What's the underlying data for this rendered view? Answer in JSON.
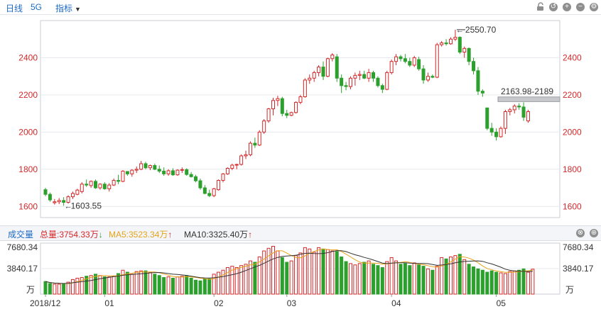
{
  "toolbar": {
    "period_label": "日线",
    "range_label": "5G",
    "indicator_label": "指标",
    "arrow": "▼",
    "zoom_in": "+",
    "zoom_out": "−",
    "settings": "⚙"
  },
  "main_chart": {
    "y_ticks": [
      "2400",
      "2200",
      "2000",
      "1800",
      "1600"
    ],
    "high_label": "2550.70",
    "low_label": "1603.55",
    "gap_label": "2163.98-2189"
  },
  "volume_bar": {
    "title": "成交量",
    "total_label": "总量:3754.33万",
    "ma5_label": "MA5:3523.34万",
    "ma10_label": "MA10:3325.40万",
    "down_arrow": "↓",
    "up_arrow": "↑",
    "close_icon": "⊗",
    "add_icon": "⊕"
  },
  "volume_chart": {
    "y_top": "7680.34",
    "y_mid": "3840.17",
    "unit": "万",
    "x_labels": [
      "2018/12",
      "01",
      "02",
      "03",
      "04",
      "05"
    ]
  },
  "colors": {
    "up": "#d4282a",
    "down": "#2ca02c",
    "ma5": "#e6a419",
    "ma10": "#333333",
    "accent": "#1d69c4"
  },
  "chart_data": {
    "type": "candlestick",
    "y_range": [
      1540,
      2600
    ],
    "ohlc": [
      [
        1690,
        1700,
        1655,
        1665
      ],
      [
        1665,
        1675,
        1625,
        1635
      ],
      [
        1620,
        1640,
        1610,
        1625
      ],
      [
        1625,
        1645,
        1612,
        1632
      ],
      [
        1632,
        1650,
        1603.55,
        1622
      ],
      [
        1622,
        1660,
        1615,
        1652
      ],
      [
        1652,
        1680,
        1640,
        1670
      ],
      [
        1665,
        1695,
        1660,
        1688
      ],
      [
        1680,
        1730,
        1670,
        1720
      ],
      [
        1720,
        1745,
        1705,
        1715
      ],
      [
        1712,
        1740,
        1700,
        1735
      ],
      [
        1735,
        1745,
        1695,
        1700
      ],
      [
        1700,
        1725,
        1690,
        1720
      ],
      [
        1720,
        1730,
        1690,
        1695
      ],
      [
        1695,
        1725,
        1680,
        1715
      ],
      [
        1715,
        1750,
        1710,
        1740
      ],
      [
        1740,
        1770,
        1720,
        1735
      ],
      [
        1735,
        1795,
        1730,
        1790
      ],
      [
        1788,
        1790,
        1765,
        1775
      ],
      [
        1775,
        1800,
        1760,
        1795
      ],
      [
        1795,
        1815,
        1780,
        1800
      ],
      [
        1800,
        1845,
        1795,
        1830
      ],
      [
        1830,
        1840,
        1800,
        1808
      ],
      [
        1808,
        1825,
        1795,
        1820
      ],
      [
        1820,
        1830,
        1795,
        1800
      ],
      [
        1800,
        1820,
        1780,
        1790
      ],
      [
        1790,
        1810,
        1765,
        1775
      ],
      [
        1775,
        1800,
        1765,
        1792
      ],
      [
        1792,
        1805,
        1765,
        1770
      ],
      [
        1770,
        1800,
        1765,
        1795
      ],
      [
        1795,
        1810,
        1780,
        1798
      ],
      [
        1798,
        1805,
        1765,
        1772
      ],
      [
        1772,
        1785,
        1755,
        1760
      ],
      [
        1760,
        1770,
        1730,
        1738
      ],
      [
        1738,
        1750,
        1690,
        1700
      ],
      [
        1700,
        1715,
        1665,
        1670
      ],
      [
        1670,
        1690,
        1650,
        1658
      ],
      [
        1658,
        1700,
        1650,
        1695
      ],
      [
        1690,
        1745,
        1685,
        1740
      ],
      [
        1740,
        1780,
        1730,
        1775
      ],
      [
        1775,
        1810,
        1770,
        1805
      ],
      [
        1805,
        1830,
        1795,
        1822
      ],
      [
        1822,
        1830,
        1800,
        1826
      ],
      [
        1826,
        1880,
        1820,
        1872
      ],
      [
        1872,
        1900,
        1855,
        1878
      ],
      [
        1878,
        1950,
        1870,
        1940
      ],
      [
        1940,
        1970,
        1915,
        1930
      ],
      [
        1930,
        2010,
        1925,
        2000
      ],
      [
        2000,
        2070,
        1990,
        2060
      ],
      [
        2060,
        2130,
        2050,
        2125
      ],
      [
        2125,
        2185,
        2090,
        2170
      ],
      [
        2170,
        2195,
        2140,
        2180
      ],
      [
        2180,
        2190,
        2085,
        2100
      ],
      [
        2100,
        2120,
        2075,
        2090
      ],
      [
        2090,
        2110,
        2085,
        2105
      ],
      [
        2105,
        2165,
        2100,
        2160
      ],
      [
        2160,
        2200,
        2150,
        2190
      ],
      [
        2190,
        2290,
        2185,
        2280
      ],
      [
        2280,
        2310,
        2260,
        2290
      ],
      [
        2290,
        2330,
        2270,
        2320
      ],
      [
        2320,
        2360,
        2300,
        2350
      ],
      [
        2350,
        2380,
        2280,
        2300
      ],
      [
        2300,
        2400,
        2295,
        2395
      ],
      [
        2395,
        2425,
        2380,
        2415
      ],
      [
        2405,
        2420,
        2270,
        2290
      ],
      [
        2290,
        2310,
        2210,
        2250
      ],
      [
        2250,
        2270,
        2225,
        2245
      ],
      [
        2245,
        2300,
        2230,
        2290
      ],
      [
        2290,
        2320,
        2250,
        2305
      ],
      [
        2305,
        2330,
        2280,
        2310
      ],
      [
        2310,
        2330,
        2285,
        2290
      ],
      [
        2290,
        2340,
        2270,
        2320
      ],
      [
        2320,
        2330,
        2270,
        2290
      ],
      [
        2290,
        2300,
        2240,
        2250
      ],
      [
        2250,
        2260,
        2210,
        2230
      ],
      [
        2230,
        2330,
        2225,
        2320
      ],
      [
        2320,
        2390,
        2310,
        2380
      ],
      [
        2380,
        2420,
        2360,
        2405
      ],
      [
        2405,
        2415,
        2380,
        2395
      ],
      [
        2395,
        2420,
        2370,
        2380
      ],
      [
        2380,
        2400,
        2350,
        2360
      ],
      [
        2360,
        2410,
        2350,
        2400
      ],
      [
        2390,
        2405,
        2330,
        2340
      ],
      [
        2340,
        2360,
        2260,
        2280
      ],
      [
        2280,
        2320,
        2270,
        2300
      ],
      [
        2300,
        2310,
        2290,
        2295
      ],
      [
        2295,
        2480,
        2290,
        2470
      ],
      [
        2470,
        2490,
        2460,
        2480
      ],
      [
        2480,
        2500,
        2465,
        2475
      ],
      [
        2475,
        2510,
        2470,
        2500
      ],
      [
        2500,
        2550.7,
        2490,
        2510
      ],
      [
        2510,
        2515,
        2420,
        2430
      ],
      [
        2430,
        2460,
        2400,
        2450
      ],
      [
        2450,
        2455,
        2360,
        2380
      ],
      [
        2380,
        2400,
        2310,
        2330
      ],
      [
        2330,
        2350,
        2200,
        2220
      ],
      [
        2220,
        2230,
        2190,
        2210
      ],
      [
        2130,
        2130,
        2010,
        2020
      ],
      [
        2020,
        2050,
        1980,
        2000
      ],
      [
        2000,
        2020,
        1955,
        1975
      ],
      [
        1975,
        2030,
        1970,
        2020
      ],
      [
        2020,
        2120,
        1990,
        2110
      ],
      [
        2110,
        2130,
        2090,
        2120
      ],
      [
        2120,
        2150,
        2100,
        2140
      ],
      [
        2140,
        2155,
        2120,
        2135
      ],
      [
        2135,
        2160,
        2060,
        2080
      ],
      [
        2060,
        2120,
        2050,
        2110
      ]
    ],
    "volumes": [
      1900,
      1600,
      1500,
      1500,
      1500,
      1800,
      2200,
      2400,
      2500,
      2700,
      2800,
      3000,
      2800,
      2600,
      2600,
      2700,
      3100,
      3600,
      3300,
      3000,
      3400,
      3500,
      3500,
      3300,
      3000,
      2800,
      2500,
      2600,
      2400,
      2600,
      2700,
      2800,
      2400,
      2100,
      2000,
      2300,
      2300,
      3000,
      3300,
      3600,
      4000,
      4200,
      4000,
      4300,
      4500,
      5000,
      4800,
      5600,
      6500,
      6900,
      7200,
      6500,
      5500,
      4800,
      5000,
      5800,
      6200,
      7000,
      6800,
      6300,
      7000,
      6800,
      6700,
      6500,
      6400,
      5600,
      4900,
      4600,
      4400,
      4600,
      4800,
      5000,
      4500,
      4300,
      4000,
      4900,
      5500,
      5000,
      4500,
      4600,
      4300,
      4700,
      4400,
      4200,
      3800,
      3600,
      4200,
      5500,
      5300,
      5600,
      5800,
      6000,
      5200,
      4500,
      4100,
      3800,
      3600,
      3300,
      3500,
      3300,
      3200,
      3100,
      3400,
      3500,
      3600,
      3800,
      3300,
      3754.33
    ],
    "x_labels": [
      "2018/12",
      "01",
      "02",
      "03",
      "04",
      "05"
    ]
  }
}
